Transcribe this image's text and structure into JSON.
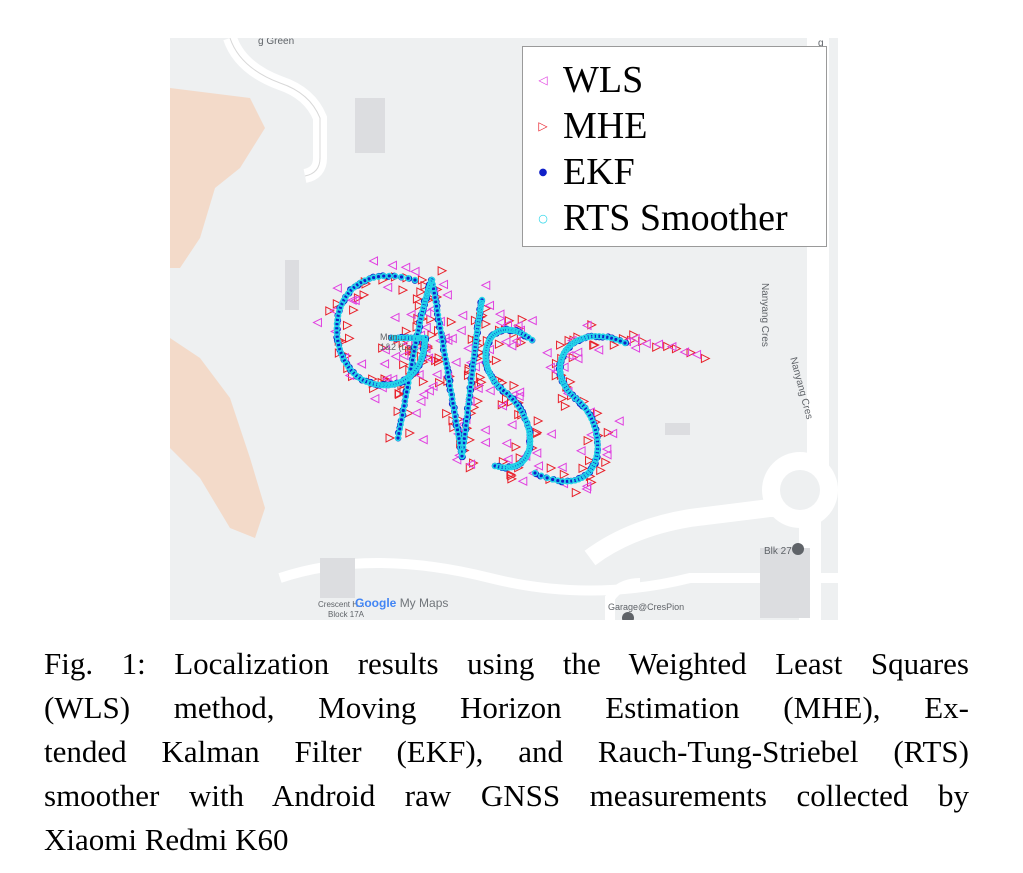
{
  "map": {
    "labels": {
      "street_top": "g Green",
      "street_right_1": "Nanyang Cres",
      "street_right_2": "Nanyang Cres",
      "poi_center": "Mun... 1&2 (Lo...",
      "blk27": "Blk 27",
      "garage": "Garage@CresPion",
      "crescent": "Crescent H...",
      "block17a": "Block 17A",
      "google": "Google",
      "mymaps": "My Maps",
      "edge_right": "g"
    }
  },
  "legend": {
    "items": [
      {
        "label": "WLS",
        "marker": "triangle-left",
        "color": "#e040e0"
      },
      {
        "label": "MHE",
        "marker": "triangle-right",
        "color": "#e8202a"
      },
      {
        "label": "EKF",
        "marker": "dot",
        "color": "#1020c8"
      },
      {
        "label": "RTS Smoother",
        "marker": "circle",
        "color": "#22d4e8"
      }
    ]
  },
  "colors": {
    "wls": "#e040e0",
    "mhe": "#e8202a",
    "ekf": "#1020c8",
    "rts": "#22d4e8",
    "map_bg": "#eef0f1",
    "road": "#ffffff",
    "building": "#dcdde0",
    "terrain": "#f3d6c2"
  },
  "caption": {
    "lines": [
      "Fig. 1: Localization results using the Weighted Least Squares",
      "(WLS) method, Moving Horizon Estimation (MHE), Ex-",
      "tended Kalman Filter (EKF), and Rauch-Tung-Striebel (RTS)",
      "smoother with Android raw GNSS measurements collected by",
      "Xiaomi Redmi K60"
    ]
  }
}
